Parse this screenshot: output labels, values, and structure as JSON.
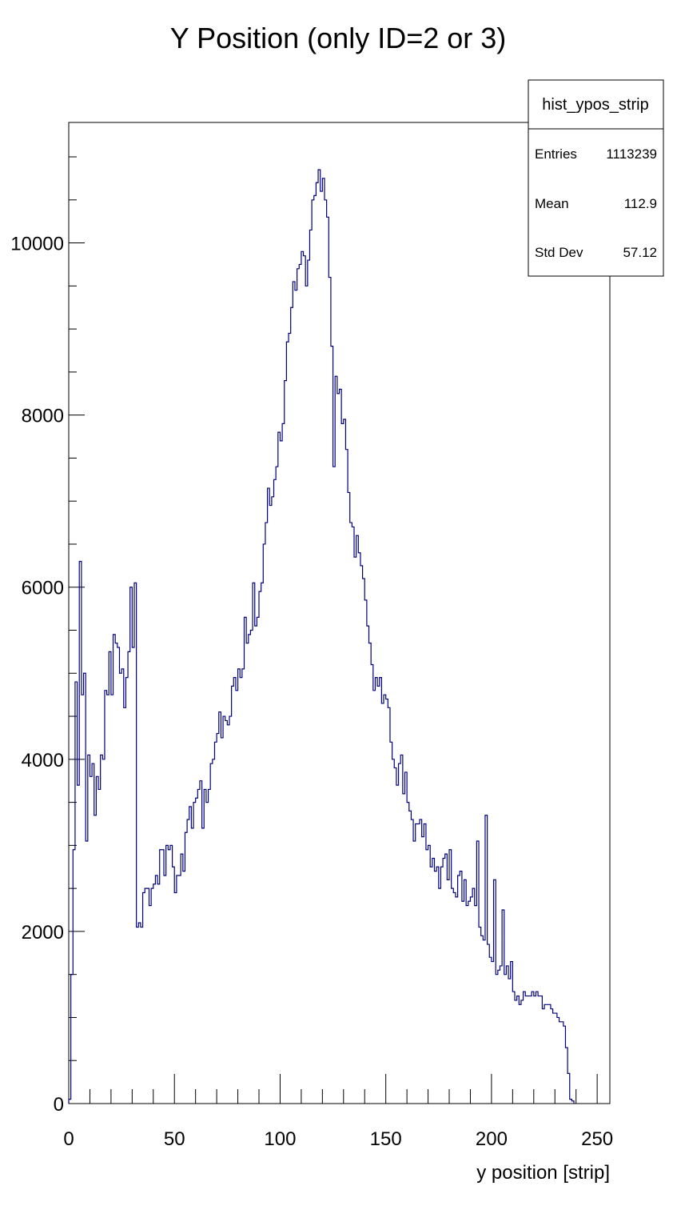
{
  "chart_data": {
    "type": "bar",
    "title": "Y Position (only ID=2 or 3)",
    "xlabel": "y position [strip]",
    "ylabel": "",
    "xlim": [
      0,
      256
    ],
    "ylim": [
      0,
      11400
    ],
    "bin_width": 1,
    "x_major_ticks": [
      0,
      50,
      100,
      150,
      200,
      250
    ],
    "x_tick_labels": [
      "0",
      "50",
      "100",
      "150",
      "200",
      "250"
    ],
    "y_major_ticks": [
      0,
      2000,
      4000,
      6000,
      8000,
      10000
    ],
    "y_tick_labels": [
      "0",
      "2000",
      "4000",
      "6000",
      "8000",
      "10000"
    ],
    "grid": false,
    "line_color": "#000080",
    "values": [
      50,
      1500,
      2950,
      4900,
      3700,
      6300,
      4750,
      5000,
      3050,
      4050,
      3800,
      3950,
      3350,
      3800,
      3650,
      4050,
      4000,
      4800,
      4750,
      5250,
      4750,
      5450,
      5350,
      5300,
      5000,
      5050,
      4600,
      4950,
      5250,
      6000,
      5300,
      6050,
      2050,
      2100,
      2050,
      2450,
      2500,
      2500,
      2300,
      2500,
      2550,
      2650,
      2550,
      2950,
      2950,
      2650,
      3000,
      2950,
      3000,
      2750,
      2450,
      2650,
      2650,
      2900,
      2700,
      3150,
      3300,
      3450,
      3200,
      3500,
      3550,
      3650,
      3750,
      3200,
      3650,
      3500,
      3650,
      3950,
      4000,
      4200,
      4300,
      4550,
      4250,
      4500,
      4450,
      4400,
      4500,
      4850,
      4950,
      4800,
      5050,
      4950,
      5050,
      5650,
      5350,
      5450,
      5500,
      6050,
      5550,
      5650,
      5950,
      6050,
      6500,
      6750,
      7150,
      6950,
      7050,
      7250,
      7400,
      7800,
      7700,
      7900,
      8400,
      8850,
      8950,
      9250,
      9550,
      9450,
      9700,
      9750,
      9900,
      9850,
      9500,
      9800,
      10150,
      10500,
      10550,
      10700,
      10850,
      10600,
      10750,
      10500,
      10300,
      9600,
      8800,
      7400,
      8450,
      8250,
      8300,
      7900,
      7950,
      7600,
      7100,
      6750,
      6700,
      6350,
      6600,
      6400,
      6250,
      6100,
      5850,
      5550,
      5350,
      5100,
      4800,
      4950,
      4850,
      4950,
      4650,
      4750,
      4700,
      4600,
      4200,
      4000,
      3900,
      3700,
      3950,
      4050,
      3600,
      3850,
      3500,
      3400,
      3300,
      3050,
      3250,
      3250,
      3300,
      3100,
      3250,
      2950,
      3000,
      2750,
      2850,
      2700,
      2750,
      2500,
      2750,
      2850,
      2900,
      2600,
      2950,
      2500,
      2450,
      2400,
      2650,
      2700,
      2350,
      2600,
      2300,
      2350,
      2400,
      2500,
      2300,
      3050,
      2050,
      1950,
      1900,
      3350,
      1850,
      1700,
      1650,
      2600,
      1500,
      1550,
      1600,
      2250,
      1500,
      1600,
      1450,
      1650,
      1300,
      1200,
      1250,
      1150,
      1200,
      1300,
      1250,
      1250,
      1250,
      1300,
      1250,
      1300,
      1250,
      1250,
      1100,
      1150,
      1150,
      1150,
      1100,
      1050,
      1050,
      1000,
      950,
      950,
      900,
      650,
      350,
      50,
      30
    ],
    "stats": {
      "name": "hist_ypos_strip",
      "entries_label": "Entries",
      "entries": "1113239",
      "mean_label": "Mean",
      "mean": "112.9",
      "stddev_label": "Std Dev",
      "stddev": "57.12"
    }
  }
}
